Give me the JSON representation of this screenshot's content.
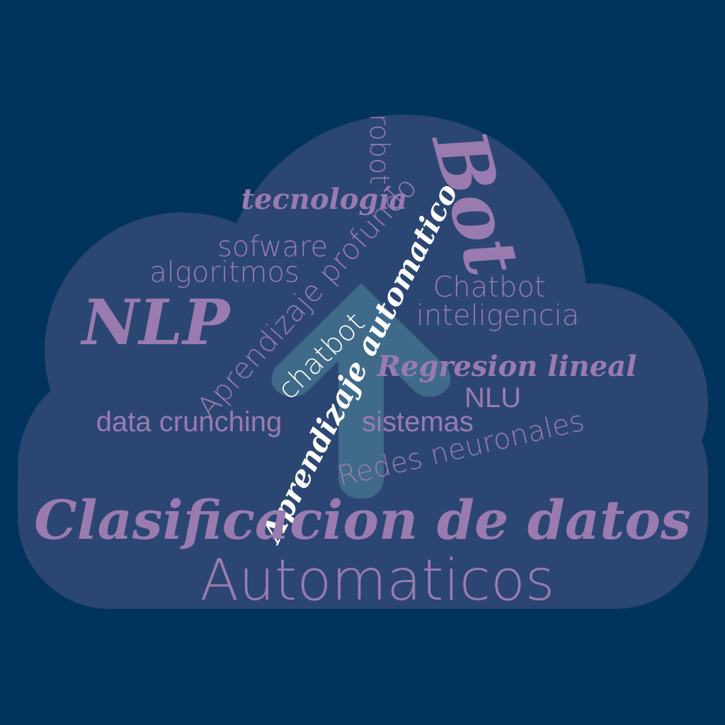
{
  "colors": {
    "background": "#01345c",
    "cloud": "#2b4672",
    "arrow": "#3f6a8a",
    "word": "#9a7bb0",
    "highlight": "#ffffff"
  },
  "words": {
    "robot": "robot",
    "tecnologia": "tecnología",
    "bot": "Bot",
    "sofware": "sofware",
    "algoritmos": "algoritmos",
    "aprendizaje_profundo": "Aprendizaje profundo",
    "aprendizaje_automatico": "Aprendizaje automatico",
    "chatbot_upper": "Chatbot",
    "inteligencia": "inteligencia",
    "nlp": "NLP",
    "chatbot_lower": "chatbot",
    "regresion_lineal": "Regresion lineal",
    "nlu": "NLU",
    "data_crunching": "data crunching",
    "sistemas": "sistemas",
    "redes_neuronales": "Redes neuronales",
    "clasificacion": "Clasificacion de datos",
    "automaticos": "Automaticos"
  }
}
